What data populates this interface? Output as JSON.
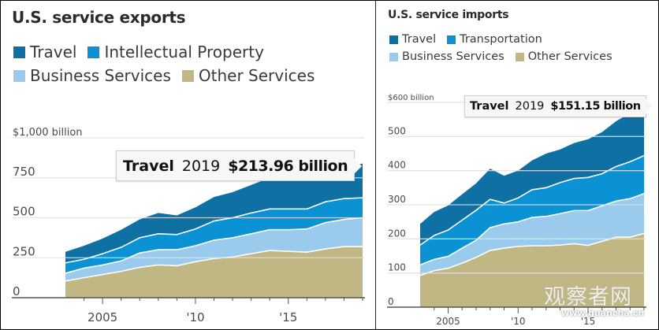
{
  "colors": {
    "travel": "#0f70a4",
    "ip_transport": "#0a92d4",
    "business": "#9acbed",
    "other": "#c0b785",
    "grid": "#d6d6d6",
    "axis": "#555555",
    "label": "#4a4a4a"
  },
  "exports": {
    "title": "U.S. service exports",
    "legend": [
      {
        "label": "Travel",
        "key": "travel"
      },
      {
        "label": "Intellectual Property",
        "key": "ip_transport"
      },
      {
        "label": "Business Services",
        "key": "business"
      },
      {
        "label": "Other Services",
        "key": "other"
      }
    ],
    "tooltip": {
      "series": "Travel",
      "year": "2019",
      "value": "$213.96 billion"
    }
  },
  "imports": {
    "title": "U.S. service imports",
    "legend": [
      {
        "label": "Travel",
        "key": "travel"
      },
      {
        "label": "Transportation",
        "key": "ip_transport"
      },
      {
        "label": "Business Services",
        "key": "business"
      },
      {
        "label": "Other Services",
        "key": "other"
      }
    ],
    "tooltip": {
      "series": "Travel",
      "year": "2019",
      "value": "$151.15 billion"
    }
  },
  "watermark": {
    "cn": "观察者网",
    "url": "www.guancha.cn"
  },
  "chart_data": [
    {
      "type": "area",
      "stacked": true,
      "title": "U.S. service exports",
      "xlabel": "",
      "ylabel": "",
      "unit": "billion USD",
      "x": [
        2003,
        2004,
        2005,
        2006,
        2007,
        2008,
        2009,
        2010,
        2011,
        2012,
        2013,
        2014,
        2015,
        2016,
        2017,
        2018,
        2019
      ],
      "xticks": [
        {
          "value": 2005,
          "label": "2005"
        },
        {
          "value": 2010,
          "label": "'10"
        },
        {
          "value": 2015,
          "label": "'15"
        }
      ],
      "yticks": [
        {
          "value": 0,
          "label": "0"
        },
        {
          "value": 250,
          "label": "250"
        },
        {
          "value": 500,
          "label": "500"
        },
        {
          "value": 750,
          "label": "750"
        },
        {
          "value": 1000,
          "label": "$1,000 billion"
        }
      ],
      "ylim": [
        0,
        1000
      ],
      "grid": true,
      "legend_position": "top-left",
      "series": [
        {
          "name": "Other Services",
          "key": "other",
          "values": [
            104,
            125,
            145,
            165,
            190,
            205,
            200,
            225,
            245,
            255,
            275,
            295,
            290,
            285,
            305,
            320,
            320
          ]
        },
        {
          "name": "Business Services",
          "key": "business",
          "values": [
            49,
            60,
            60,
            65,
            90,
            95,
            100,
            100,
            115,
            120,
            125,
            130,
            135,
            145,
            165,
            170,
            180
          ]
        },
        {
          "name": "Intellectual Property",
          "key": "ip_transport",
          "values": [
            65,
            55,
            70,
            85,
            95,
            100,
            95,
            105,
            120,
            125,
            130,
            130,
            130,
            125,
            130,
            130,
            125
          ]
        },
        {
          "name": "Travel",
          "key": "travel",
          "values": [
            69,
            85,
            95,
            110,
            115,
            130,
            120,
            135,
            150,
            160,
            175,
            195,
            205,
            210,
            190,
            195,
            214
          ]
        }
      ],
      "annotation": "Travel 2019 $213.96 billion"
    },
    {
      "type": "area",
      "stacked": true,
      "title": "U.S. service imports",
      "xlabel": "",
      "ylabel": "",
      "unit": "billion USD",
      "x": [
        2003,
        2004,
        2005,
        2006,
        2007,
        2008,
        2009,
        2010,
        2011,
        2012,
        2013,
        2014,
        2015,
        2016,
        2017,
        2018,
        2019
      ],
      "xticks": [
        {
          "value": 2005,
          "label": "2005"
        },
        {
          "value": 2010,
          "label": "'10"
        },
        {
          "value": 2015,
          "label": "'15"
        }
      ],
      "yticks": [
        {
          "value": 0,
          "label": "0"
        },
        {
          "value": 100,
          "label": "100"
        },
        {
          "value": 200,
          "label": "200"
        },
        {
          "value": 300,
          "label": "300"
        },
        {
          "value": 400,
          "label": "400"
        },
        {
          "value": 500,
          "label": "500"
        },
        {
          "value": 600,
          "label": "$600 billion"
        }
      ],
      "ylim": [
        0,
        600
      ],
      "grid": true,
      "legend_position": "top-left",
      "series": [
        {
          "name": "Other Services",
          "key": "other",
          "values": [
            93,
            107,
            114,
            129,
            146,
            166,
            173,
            178,
            180,
            180,
            182,
            186,
            181,
            193,
            205,
            205,
            216
          ]
        },
        {
          "name": "Business Services",
          "key": "business",
          "values": [
            31,
            33,
            35,
            44,
            50,
            67,
            71,
            72,
            83,
            86,
            92,
            97,
            102,
            104,
            106,
            113,
            117
          ]
        },
        {
          "name": "Transportation",
          "key": "ip_transport",
          "values": [
            58,
            70,
            77,
            82,
            88,
            83,
            61,
            70,
            81,
            84,
            91,
            94,
            97,
            94,
            101,
            108,
            111
          ]
        },
        {
          "name": "Travel",
          "key": "travel",
          "values": [
            62,
            69,
            72,
            76,
            79,
            90,
            80,
            80,
            86,
            100,
            97,
            104,
            112,
            122,
            133,
            142,
            151
          ]
        }
      ],
      "annotation": "Travel 2019 $151.15 billion"
    }
  ]
}
